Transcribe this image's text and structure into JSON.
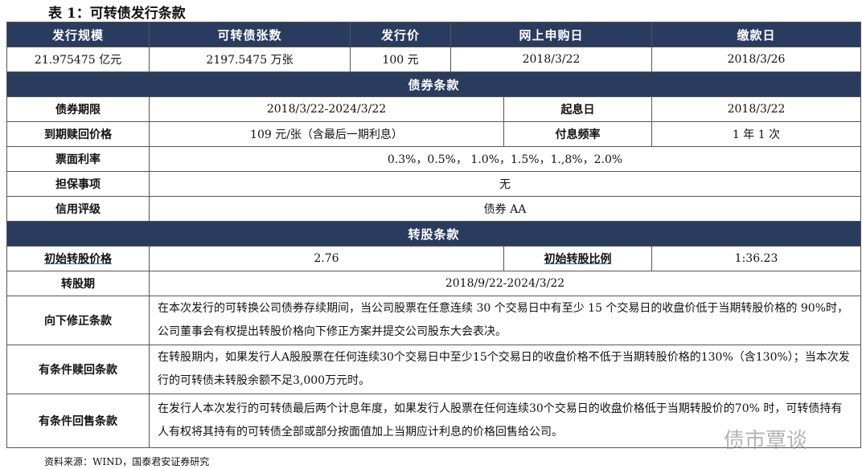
{
  "title": "表 1：可转债发行条款",
  "header": [
    "发行规模",
    "可转债张数",
    "发行价",
    "网上申购日",
    "缴款日"
  ],
  "row1": [
    "21.975475 亿元",
    "2197.5475 万张",
    "100 元",
    "2018/3/22",
    "2018/3/26"
  ],
  "bond_section": "债券条款",
  "term": {
    "label": "债券期限",
    "value": "2018/3/22-2024/3/22",
    "label2": "起息日",
    "value2": "2018/3/22"
  },
  "redeem": {
    "label": "到期赎回价格",
    "value": "109 元/张（含最后一期利息）",
    "label2": "付息频率",
    "value2": "1 年 1 次"
  },
  "coupon": {
    "label": "票面利率",
    "value": "0.3%，0.5%， 1.0%，1.5%，1.,8%，2.0%"
  },
  "guarantee": {
    "label": "担保事项",
    "value": "无"
  },
  "rating": {
    "label": "信用评级",
    "value": "债券 AA"
  },
  "conv_section": "转股条款",
  "conv_price": {
    "label": "初始转股价格",
    "value": "2.76",
    "label2": "初始转股比例",
    "value2": "1:36.23"
  },
  "conv_period": {
    "label": "转股期",
    "value": "2018/9/22-2024/3/22"
  },
  "down": {
    "label": "向下修正条款",
    "value": "在本次发行的可转换公司债券存续期间，当公司股票在任意连续 30 个交易日中有至少 15 个交易日的收盘价低于当期转股价格的 90%时，公司董事会有权提出转股价格向下修正方案并提交公司股东大会表决。"
  },
  "call": {
    "label": "有条件赎回条款",
    "value": "在转股期内，如果发行人A股股票在任何连续30个交易日中至少15个交易日的收盘价格不低于当期转股价格的130%（含130%）；当本次发行的可转债未转股余额不足3,000万元时。"
  },
  "put": {
    "label": "有条件回售条款",
    "value": "在发行人本次发行的可转债最后两个计息年度，如果发行人股票在任何连续30个交易日的收盘价格低于当期转股价的70% 时，可转债持有人有权将其持有的可转债全部或部分按面值加上当期应计利息的价格回售给公司。"
  },
  "source": "资料来源：WIND，国泰君安证券研究",
  "watermark": "债市覃谈",
  "colors": {
    "header_bg": "#2a3c5e"
  }
}
